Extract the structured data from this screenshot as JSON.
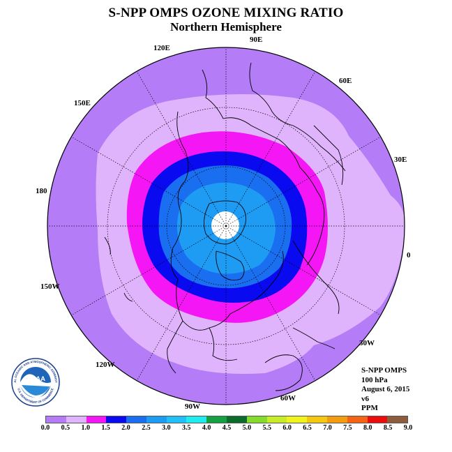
{
  "title": "S-NPP OMPS OZONE MIXING RATIO",
  "subtitle": "Northern Hemisphere",
  "longitude_labels": [
    "90E",
    "60E",
    "30E",
    "0",
    "30W",
    "60W",
    "90W",
    "120W",
    "150W",
    "180",
    "150E",
    "120E"
  ],
  "info": {
    "instrument": "S-NPP OMPS",
    "level": "100 hPa",
    "date": "August 6, 2015",
    "version": "v6",
    "units": "PPM"
  },
  "colorbar": {
    "ticks": [
      "0.0",
      "0.5",
      "1.0",
      "1.5",
      "2.0",
      "2.5",
      "3.0",
      "3.5",
      "4.0",
      "4.5",
      "5.0",
      "5.5",
      "6.0",
      "6.5",
      "7.0",
      "7.5",
      "8.0",
      "8.5",
      "9.0"
    ],
    "colors": [
      "#b47cf6",
      "#e0b4fc",
      "#f416f4",
      "#0a0af0",
      "#1a6ef0",
      "#1e9cf4",
      "#22c0f8",
      "#20ecf0",
      "#15a044",
      "#0c6c2c",
      "#84dc2c",
      "#c8ec28",
      "#f0f41c",
      "#f4c810",
      "#f49c10",
      "#f46414",
      "#ec0c0c",
      "#8c5c3c"
    ]
  },
  "logo": {
    "text": "NOAA",
    "ring_text": "NATIONAL OCEANIC AND ATMOSPHERIC ADMINISTRATION",
    "ring_bottom": "U.S. DEPARTMENT OF COMMERCE"
  },
  "map_colors": {
    "outer_band": "#b47cf6",
    "light_band": "#e0b4fc",
    "magenta_band": "#f416f4",
    "dark_blue_band": "#0a0af0",
    "blue_band": "#1a6ef0",
    "light_blue_band": "#1e9cf4",
    "pole_gap": "#ffffff"
  }
}
